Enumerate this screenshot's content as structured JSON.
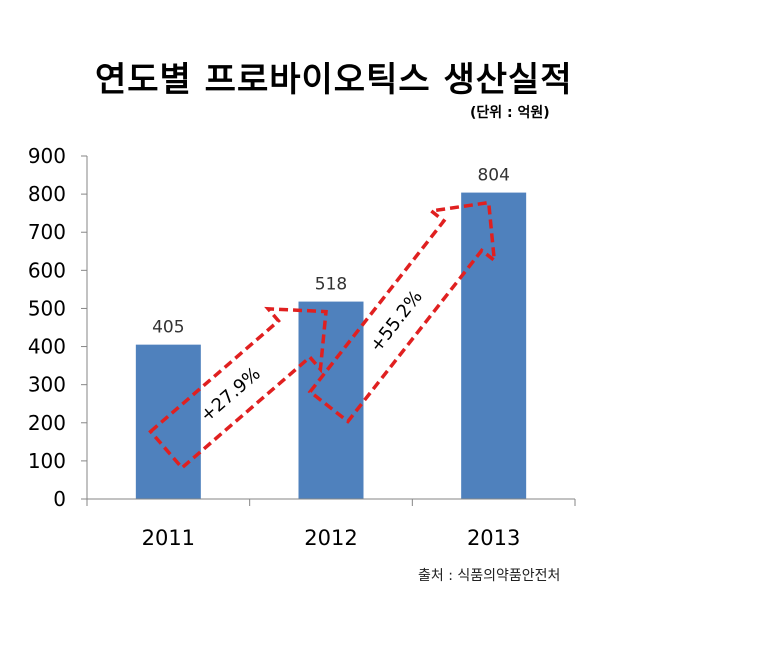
{
  "chart_data": {
    "type": "bar",
    "title": "연도별 프로바이오틱스 생산실적",
    "unit_label": "(단위 : 억원)",
    "categories": [
      "2011",
      "2012",
      "2013"
    ],
    "values": [
      405,
      518,
      804
    ],
    "data_labels": [
      "405",
      "518",
      "804"
    ],
    "ylim": [
      0,
      900
    ],
    "yticks": [
      "0",
      "100",
      "200",
      "300",
      "400",
      "500",
      "600",
      "700",
      "800",
      "900"
    ],
    "bar_color": "#4F81BD",
    "grid": false,
    "annotations": [
      {
        "text": "+27.9%",
        "from": "2011",
        "to": "2012",
        "style": "dashed-arrow",
        "color": "#E02020"
      },
      {
        "text": "+55.2%",
        "from": "2012",
        "to": "2013",
        "style": "dashed-arrow",
        "color": "#E02020"
      }
    ],
    "source": "출처 : 식품의약품안전처"
  }
}
